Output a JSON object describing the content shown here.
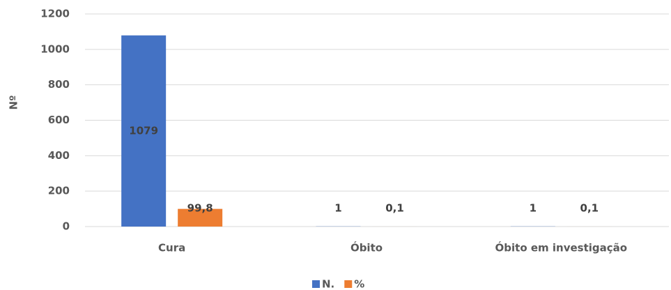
{
  "chart_data": {
    "type": "bar",
    "categories": [
      "Cura",
      "Óbito",
      "Óbito em investigação"
    ],
    "y_label": "Nº",
    "series": [
      {
        "name": "N.",
        "color": "#4472c4",
        "values": [
          1079,
          1,
          1
        ]
      },
      {
        "name": "%",
        "color": "#ed7d31",
        "values": [
          99.8,
          0.1,
          0.1
        ],
        "value_labels": [
          "99,8",
          "0,1",
          "0,1"
        ]
      }
    ],
    "ylim": [
      0,
      1200
    ],
    "yticks": [
      0,
      200,
      400,
      600,
      800,
      1000,
      1200
    ],
    "grid": true,
    "legend": "bottom"
  }
}
